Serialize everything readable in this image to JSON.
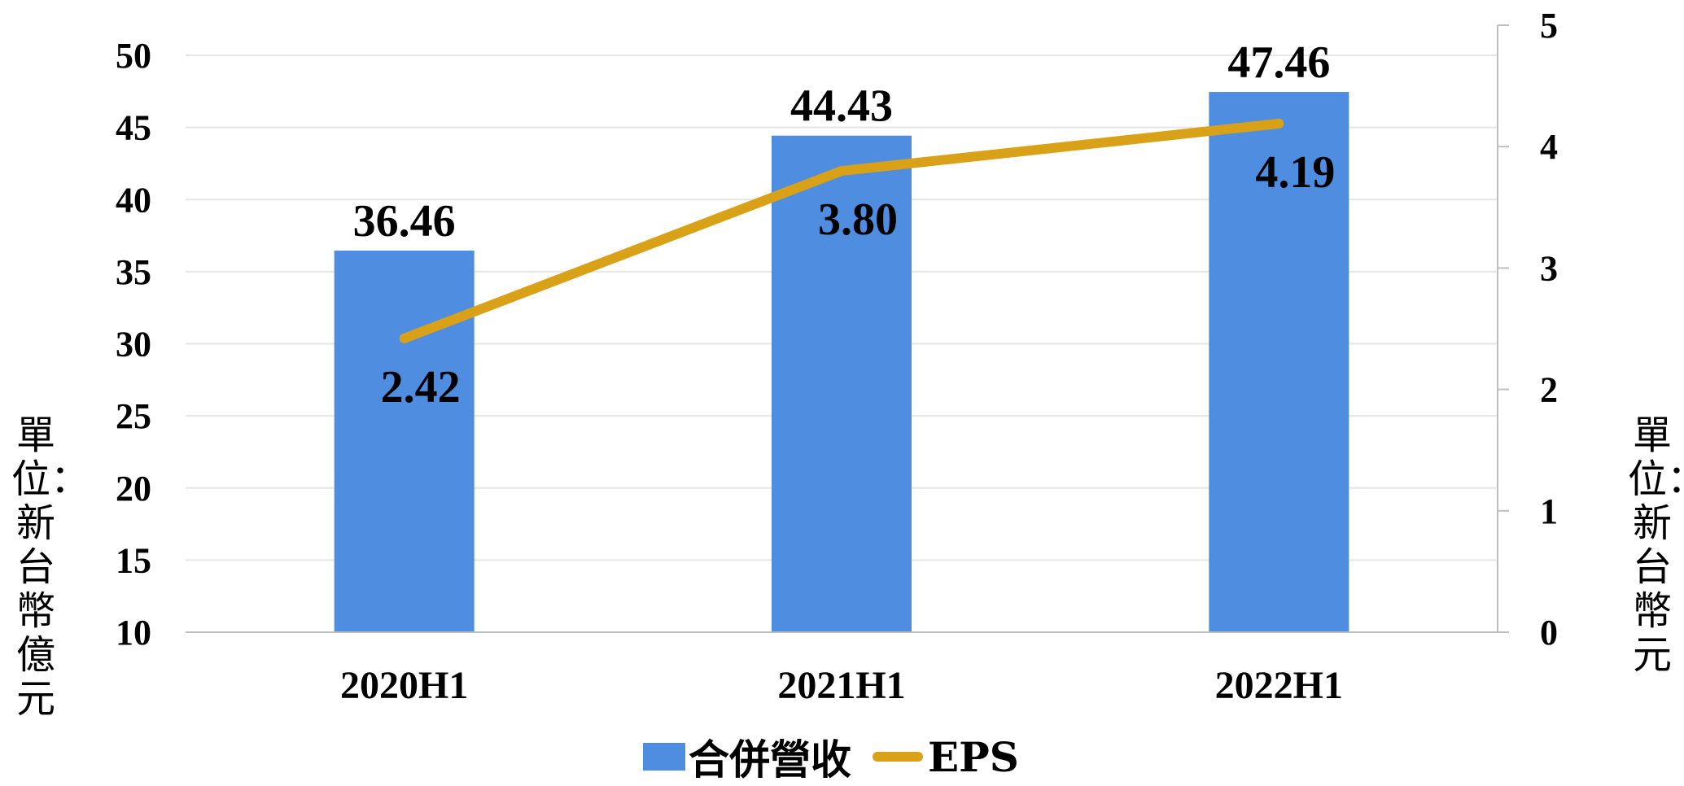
{
  "chart_data": {
    "type": "bar+line",
    "categories": [
      "2020H1",
      "2021H1",
      "2022H1"
    ],
    "series": [
      {
        "name": "合併營收",
        "type": "bar",
        "axis": "left",
        "values": [
          36.46,
          44.43,
          47.46
        ],
        "labels": [
          "36.46",
          "44.43",
          "47.46"
        ],
        "color": "#4e8de0"
      },
      {
        "name": "EPS",
        "type": "line",
        "axis": "right",
        "values": [
          2.42,
          3.8,
          4.19
        ],
        "labels": [
          "2.42",
          "3.80",
          "4.19"
        ],
        "color": "#d9a117"
      }
    ],
    "y_left": {
      "label": "單位：新台幣億元",
      "range": [
        10,
        50
      ],
      "ticks": [
        "10",
        "15",
        "20",
        "25",
        "30",
        "35",
        "40",
        "45",
        "50"
      ]
    },
    "y_right": {
      "label": "單位：新台幣元",
      "range": [
        0,
        5
      ],
      "ticks": [
        "0",
        "1",
        "2",
        "3",
        "4",
        "5"
      ]
    },
    "grid": true,
    "legend": {
      "position": "bottom",
      "items": [
        "合併營收",
        "EPS"
      ]
    }
  }
}
